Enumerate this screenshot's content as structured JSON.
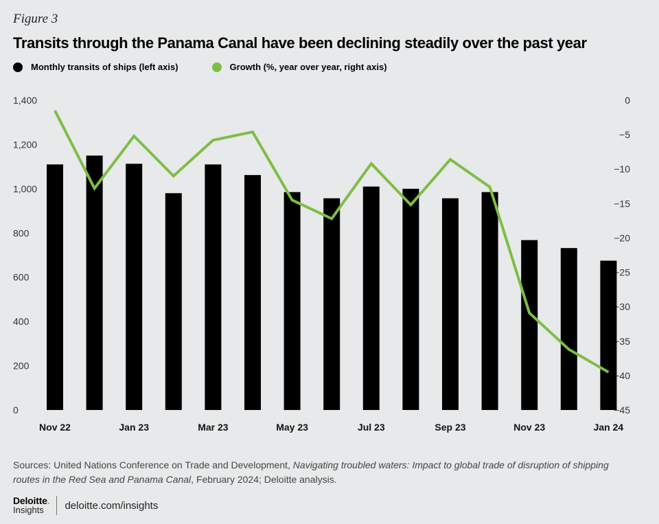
{
  "figure_label": "Figure 3",
  "title": "Transits through the Panama Canal have been declining steadily over the past year",
  "legend": {
    "bars": "Monthly transits of ships (left axis)",
    "line": "Growth (%, year over year, right axis)"
  },
  "colors": {
    "bar": "#000000",
    "line": "#7dbe45",
    "background": "#e8e9ea",
    "brand_dot": "#86bc25"
  },
  "chart_data": {
    "type": "bar+line",
    "categories": [
      "Nov 22",
      "Dec 22",
      "Jan 23",
      "Feb 23",
      "Mar 23",
      "Apr 23",
      "May 23",
      "Jun 23",
      "Jul 23",
      "Aug 23",
      "Sep 23",
      "Oct 23",
      "Nov 23",
      "Dec 23",
      "Jan 24"
    ],
    "x_tick_labels": [
      "Nov 22",
      "",
      "Jan 23",
      "",
      "Mar 23",
      "",
      "May 23",
      "",
      "Jul 23",
      "",
      "Sep 23",
      "",
      "Nov 23",
      "",
      "Jan 24"
    ],
    "series": [
      {
        "name": "Monthly transits of ships (left axis)",
        "type": "bar",
        "axis": "left",
        "values": [
          1110,
          1150,
          1113,
          980,
          1110,
          1062,
          985,
          957,
          1010,
          1000,
          957,
          985,
          768,
          732,
          675
        ]
      },
      {
        "name": "Growth (%, year over year, right axis)",
        "type": "line",
        "axis": "right",
        "values": [
          -1.5,
          -12.8,
          -5.2,
          -11,
          -5.8,
          -4.6,
          -14.5,
          -17.2,
          -9.2,
          -15.2,
          -8.6,
          -12.6,
          -30.9,
          -36.2,
          -39.5
        ]
      }
    ],
    "y_left": {
      "min": 0,
      "max": 1400,
      "ticks": [
        "0",
        "200",
        "400",
        "600",
        "800",
        "1,000",
        "1,200",
        "1,400"
      ]
    },
    "y_right": {
      "min": -45,
      "max": 0,
      "ticks": [
        "0",
        "−5",
        "−10",
        "−15",
        "−20",
        "−25",
        "−30",
        "−35",
        "−40",
        "−45"
      ]
    },
    "xlabel": "",
    "ylabel": ""
  },
  "sources": {
    "prefix": "Sources: United Nations Conference on Trade and Development, ",
    "italic": "Navigating troubled waters: Impact to global trade of disruption of shipping routes in the Red Sea and Panama Canal",
    "suffix": ", February 2024; Deloitte analysis."
  },
  "footer": {
    "brand": "Deloitte",
    "brand_dot": ".",
    "sub": "Insights",
    "url": "deloitte.com/insights"
  }
}
